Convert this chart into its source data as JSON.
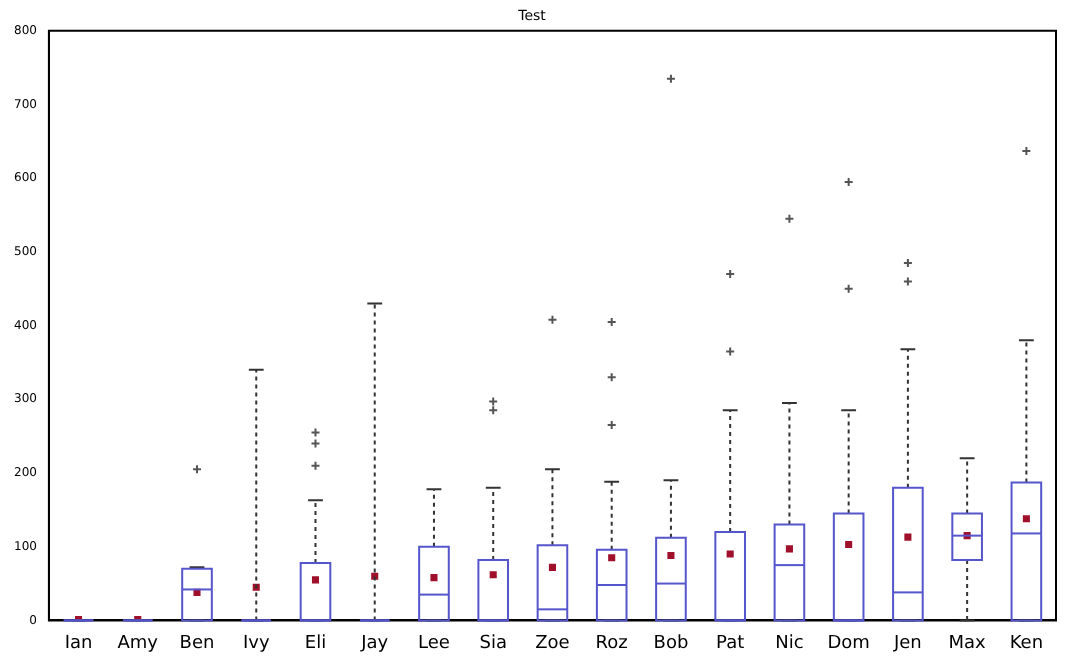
{
  "chart_data": {
    "type": "box",
    "title": "Test",
    "color": "#5555cc",
    "categories": [
      "Ian",
      "Amy",
      "Ben",
      "Ivy",
      "Eli",
      "Jay",
      "Lee",
      "Sia",
      "Zoe",
      "Roz",
      "Bob",
      "Pat",
      "Nic",
      "Dom",
      "Jen",
      "Max",
      "Ken"
    ],
    "boxes": [
      {
        "low": 0,
        "q1": 0,
        "median": 0,
        "q3": 0,
        "high": 0,
        "mean": 1
      },
      {
        "low": 0,
        "q1": 0,
        "median": 0,
        "q3": 0,
        "high": 0,
        "mean": 1
      },
      {
        "low": 0,
        "q1": 0,
        "median": 42,
        "q3": 70,
        "high": 72,
        "mean": 38,
        "outliers": [
          205
        ]
      },
      {
        "low": 0,
        "q1": 0,
        "median": 0,
        "q3": 0,
        "high": 340,
        "mean": 45
      },
      {
        "low": 0,
        "q1": 0,
        "median": 0,
        "q3": 78,
        "high": 163,
        "mean": 55,
        "outliers": [
          210,
          240,
          255
        ]
      },
      {
        "low": 0,
        "q1": 0,
        "median": 0,
        "q3": 0,
        "high": 430,
        "mean": 60
      },
      {
        "low": 0,
        "q1": 0,
        "median": 35,
        "q3": 100,
        "high": 178,
        "mean": 58
      },
      {
        "low": 0,
        "q1": 0,
        "median": 0,
        "q3": 82,
        "high": 180,
        "mean": 62,
        "outliers": [
          285,
          297
        ]
      },
      {
        "low": 0,
        "q1": 0,
        "median": 15,
        "q3": 102,
        "high": 205,
        "mean": 72,
        "outliers": [
          408
        ]
      },
      {
        "low": 0,
        "q1": 0,
        "median": 48,
        "q3": 96,
        "high": 188,
        "mean": 85,
        "outliers": [
          265,
          330,
          405
        ]
      },
      {
        "low": 0,
        "q1": 0,
        "median": 50,
        "q3": 112,
        "high": 190,
        "mean": 88,
        "outliers": [
          735
        ]
      },
      {
        "low": 0,
        "q1": 0,
        "median": 0,
        "q3": 120,
        "high": 285,
        "mean": 90,
        "outliers": [
          365,
          470
        ]
      },
      {
        "low": 0,
        "q1": 0,
        "median": 75,
        "q3": 130,
        "high": 295,
        "mean": 97,
        "outliers": [
          545
        ]
      },
      {
        "low": 0,
        "q1": 0,
        "median": 0,
        "q3": 145,
        "high": 285,
        "mean": 103,
        "outliers": [
          450,
          595
        ]
      },
      {
        "low": 0,
        "q1": 0,
        "median": 38,
        "q3": 180,
        "high": 368,
        "mean": 113,
        "outliers": [
          460,
          485
        ]
      },
      {
        "low": 0,
        "q1": 82,
        "median": 115,
        "q3": 145,
        "high": 220,
        "mean": 115
      },
      {
        "low": 0,
        "q1": 0,
        "median": 118,
        "q3": 187,
        "high": 380,
        "mean": 138,
        "outliers": [
          637
        ]
      }
    ],
    "ylim": [
      0,
      800
    ],
    "yticks": [
      0,
      100,
      200,
      300,
      400,
      500,
      600,
      700,
      800
    ],
    "grid": false,
    "legend": false
  }
}
